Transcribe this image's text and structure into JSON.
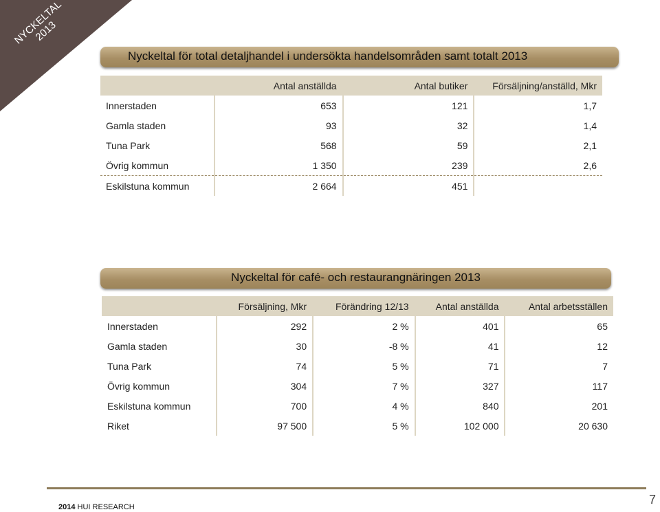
{
  "corner": {
    "line1": "NYCKELTAL",
    "line2": "2013"
  },
  "table1": {
    "title": "Nyckeltal för total detaljhandel i undersökta handelsområden samt totalt 2013",
    "headers": [
      "",
      "Antal anställda",
      "Antal butiker",
      "Försäljning/anställd, Mkr"
    ],
    "rows": [
      [
        "Innerstaden",
        "653",
        "121",
        "1,7"
      ],
      [
        "Gamla staden",
        "93",
        "32",
        "1,4"
      ],
      [
        "Tuna Park",
        "568",
        "59",
        "2,1"
      ],
      [
        "Övrig kommun",
        "1 350",
        "239",
        "2,6"
      ],
      [
        "Eskilstuna kommun",
        "2 664",
        "451",
        ""
      ]
    ]
  },
  "table2": {
    "title": "Nyckeltal för café- och restaurangnäringen 2013",
    "headers": [
      "",
      "Försäljning, Mkr",
      "Förändring 12/13",
      "Antal anställda",
      "Antal arbetsställen"
    ],
    "rows": [
      [
        "Innerstaden",
        "292",
        "2 %",
        "401",
        "65"
      ],
      [
        "Gamla staden",
        "30",
        "-8 %",
        "41",
        "12"
      ],
      [
        "Tuna Park",
        "74",
        "5 %",
        "71",
        "7"
      ],
      [
        "Övrig kommun",
        "304",
        "7 %",
        "327",
        "117"
      ],
      [
        "Eskilstuna kommun",
        "700",
        "4 %",
        "840",
        "201"
      ],
      [
        "Riket",
        "97 500",
        "5 %",
        "102 000",
        "20 630"
      ]
    ]
  },
  "footer": {
    "year": "2014",
    "org": "HUI RESEARCH",
    "page": "7"
  },
  "colors": {
    "corner": "#5b4b48",
    "banner": "#a88f65",
    "header_bg": "#ddd6c3",
    "footer_line": "#8e7c5a"
  }
}
